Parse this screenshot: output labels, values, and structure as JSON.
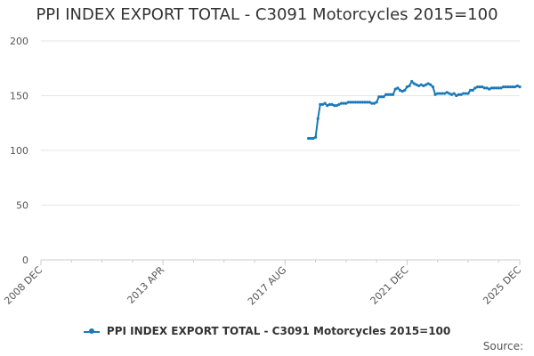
{
  "title": "PPI INDEX EXPORT TOTAL - C3091 Motorcycles 2015=100",
  "source_label": "Source:",
  "colors": {
    "series": "#1a7ab8",
    "grid": "#e6e6e6",
    "axis": "#cccccc"
  },
  "chart_data": {
    "type": "line",
    "title": "PPI INDEX EXPORT TOTAL - C3091 Motorcycles 2015=100",
    "xlabel": "",
    "ylabel": "",
    "ylim": [
      0,
      200
    ],
    "yticks": [
      0,
      50,
      100,
      150,
      200
    ],
    "xlim": [
      "2008-12",
      "2025-12"
    ],
    "xtick_labels": [
      "2008 DEC",
      "2013 APR",
      "2017 AUG",
      "2021 DEC",
      "2025 DEC"
    ],
    "xtick_dates": [
      "2008-12",
      "2013-04",
      "2017-08",
      "2021-12",
      "2025-12"
    ],
    "grid": true,
    "legend_position": "bottom",
    "series": [
      {
        "name": "PPI INDEX EXPORT TOTAL - C3091 Motorcycles 2015=100",
        "x": [
          "2018-06",
          "2018-07",
          "2018-08",
          "2018-09",
          "2018-10",
          "2018-11",
          "2018-12",
          "2019-01",
          "2019-02",
          "2019-03",
          "2019-04",
          "2019-05",
          "2019-06",
          "2019-07",
          "2019-08",
          "2019-09",
          "2019-10",
          "2019-11",
          "2019-12",
          "2020-01",
          "2020-02",
          "2020-03",
          "2020-04",
          "2020-05",
          "2020-06",
          "2020-07",
          "2020-08",
          "2020-09",
          "2020-10",
          "2020-11",
          "2020-12",
          "2021-01",
          "2021-02",
          "2021-03",
          "2021-04",
          "2021-05",
          "2021-06",
          "2021-07",
          "2021-08",
          "2021-09",
          "2021-10",
          "2021-11",
          "2021-12",
          "2022-01",
          "2022-02",
          "2022-03",
          "2022-04",
          "2022-05",
          "2022-06",
          "2022-07",
          "2022-08",
          "2022-09",
          "2022-10",
          "2022-11",
          "2022-12",
          "2023-01",
          "2023-02",
          "2023-03",
          "2023-04",
          "2023-05",
          "2023-06",
          "2023-07",
          "2023-08",
          "2023-09",
          "2023-10",
          "2023-11",
          "2023-12",
          "2024-01",
          "2024-02",
          "2024-03",
          "2024-04",
          "2024-05",
          "2024-06",
          "2024-07",
          "2024-08",
          "2024-09",
          "2024-10",
          "2024-11",
          "2024-12",
          "2025-01",
          "2025-02",
          "2025-03",
          "2025-04",
          "2025-05",
          "2025-06",
          "2025-07",
          "2025-08",
          "2025-09",
          "2025-10",
          "2025-11",
          "2025-12"
        ],
        "values": [
          111,
          111,
          111,
          112,
          129,
          142,
          142,
          143,
          141,
          142,
          142,
          141,
          141,
          142,
          143,
          143,
          143,
          144,
          144,
          144,
          144,
          144,
          144,
          144,
          144,
          144,
          144,
          143,
          143,
          144,
          149,
          149,
          149,
          151,
          151,
          151,
          151,
          156,
          157,
          155,
          154,
          155,
          158,
          159,
          163,
          161,
          160,
          159,
          160,
          159,
          160,
          161,
          160,
          158,
          151,
          152,
          152,
          152,
          152,
          153,
          152,
          151,
          152,
          150,
          151,
          151,
          152,
          152,
          152,
          155,
          155,
          157,
          158,
          158,
          158,
          157,
          157,
          156,
          157,
          157,
          157,
          157,
          157,
          158,
          158,
          158,
          158,
          158,
          158,
          159,
          158
        ]
      }
    ]
  }
}
